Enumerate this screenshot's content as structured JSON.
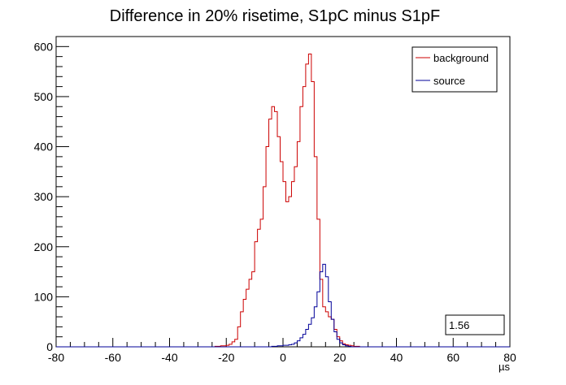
{
  "chart_data": {
    "type": "histogram",
    "title": "Difference in 20% risetime, S1pC minus S1pF",
    "xlabel": "µs",
    "ylabel": "",
    "xlim": [
      -80,
      80
    ],
    "ylim": [
      0,
      620
    ],
    "x_ticks": [
      -80,
      -60,
      -40,
      -20,
      0,
      20,
      40,
      60,
      80
    ],
    "y_ticks": [
      0,
      100,
      200,
      300,
      400,
      500,
      600
    ],
    "bin_width": 1,
    "legend": {
      "placement": "top-right",
      "entries": [
        "background",
        "source"
      ]
    },
    "stat_box": {
      "value": "1.56"
    },
    "series": [
      {
        "name": "background",
        "color": "#cc0000",
        "bins": [
          {
            "x": -24,
            "y": 1
          },
          {
            "x": -23,
            "y": 1
          },
          {
            "x": -22,
            "y": 2
          },
          {
            "x": -21,
            "y": 2
          },
          {
            "x": -20,
            "y": 3
          },
          {
            "x": -19,
            "y": 5
          },
          {
            "x": -18,
            "y": 10
          },
          {
            "x": -17,
            "y": 15
          },
          {
            "x": -16,
            "y": 40
          },
          {
            "x": -15,
            "y": 70
          },
          {
            "x": -14,
            "y": 95
          },
          {
            "x": -13,
            "y": 115
          },
          {
            "x": -12,
            "y": 135
          },
          {
            "x": -11,
            "y": 150
          },
          {
            "x": -10,
            "y": 210
          },
          {
            "x": -9,
            "y": 235
          },
          {
            "x": -8,
            "y": 255
          },
          {
            "x": -7,
            "y": 320
          },
          {
            "x": -6,
            "y": 400
          },
          {
            "x": -5,
            "y": 455
          },
          {
            "x": -4,
            "y": 480
          },
          {
            "x": -3,
            "y": 470
          },
          {
            "x": -2,
            "y": 420
          },
          {
            "x": -1,
            "y": 370
          },
          {
            "x": 0,
            "y": 330
          },
          {
            "x": 1,
            "y": 290
          },
          {
            "x": 2,
            "y": 300
          },
          {
            "x": 3,
            "y": 330
          },
          {
            "x": 4,
            "y": 360
          },
          {
            "x": 5,
            "y": 410
          },
          {
            "x": 6,
            "y": 480
          },
          {
            "x": 7,
            "y": 520
          },
          {
            "x": 8,
            "y": 565
          },
          {
            "x": 9,
            "y": 585
          },
          {
            "x": 10,
            "y": 530
          },
          {
            "x": 11,
            "y": 380
          },
          {
            "x": 12,
            "y": 255
          },
          {
            "x": 13,
            "y": 135
          },
          {
            "x": 14,
            "y": 80
          },
          {
            "x": 15,
            "y": 70
          },
          {
            "x": 16,
            "y": 60
          },
          {
            "x": 17,
            "y": 55
          },
          {
            "x": 18,
            "y": 35
          },
          {
            "x": 19,
            "y": 20
          },
          {
            "x": 20,
            "y": 12
          },
          {
            "x": 21,
            "y": 6
          },
          {
            "x": 22,
            "y": 4
          },
          {
            "x": 23,
            "y": 3
          },
          {
            "x": 24,
            "y": 2
          },
          {
            "x": 25,
            "y": 1
          },
          {
            "x": 26,
            "y": 1
          }
        ]
      },
      {
        "name": "source",
        "color": "#000099",
        "bins": [
          {
            "x": -4,
            "y": 1
          },
          {
            "x": -3,
            "y": 1
          },
          {
            "x": -2,
            "y": 2
          },
          {
            "x": -1,
            "y": 2
          },
          {
            "x": 0,
            "y": 3
          },
          {
            "x": 1,
            "y": 3
          },
          {
            "x": 2,
            "y": 4
          },
          {
            "x": 3,
            "y": 5
          },
          {
            "x": 4,
            "y": 8
          },
          {
            "x": 5,
            "y": 12
          },
          {
            "x": 6,
            "y": 18
          },
          {
            "x": 7,
            "y": 25
          },
          {
            "x": 8,
            "y": 35
          },
          {
            "x": 9,
            "y": 45
          },
          {
            "x": 10,
            "y": 58
          },
          {
            "x": 11,
            "y": 80
          },
          {
            "x": 12,
            "y": 110
          },
          {
            "x": 13,
            "y": 150
          },
          {
            "x": 14,
            "y": 165
          },
          {
            "x": 15,
            "y": 140
          },
          {
            "x": 16,
            "y": 90
          },
          {
            "x": 17,
            "y": 55
          },
          {
            "x": 18,
            "y": 30
          },
          {
            "x": 19,
            "y": 15
          },
          {
            "x": 20,
            "y": 8
          },
          {
            "x": 21,
            "y": 4
          },
          {
            "x": 22,
            "y": 2
          },
          {
            "x": 23,
            "y": 1
          }
        ]
      }
    ]
  }
}
